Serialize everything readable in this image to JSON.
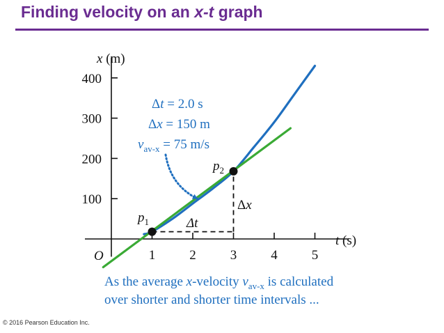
{
  "slide": {
    "title_pre": "Finding velocity on an ",
    "title_var": "x-t",
    "title_post": " graph",
    "copyright": "© 2016 Pearson Education Inc."
  },
  "chart_data": {
    "type": "line",
    "x_axis": {
      "label_var": "t",
      "label_unit": " (s)",
      "ticks": [
        1,
        2,
        3,
        4,
        5
      ],
      "range": [
        0,
        5.5
      ]
    },
    "y_axis": {
      "label_var": "x",
      "label_unit": " (m)",
      "ticks": [
        100,
        200,
        300,
        400
      ],
      "range": [
        -70,
        430
      ]
    },
    "origin_label": "O",
    "series": [
      {
        "role": "curve",
        "color": "#1f6fbf",
        "x": [
          0.8,
          1.0,
          1.5,
          2.0,
          2.5,
          3.0,
          3.5,
          4.0,
          4.5,
          5.0
        ],
        "y": [
          12,
          18,
          50,
          88,
          126,
          168,
          228,
          290,
          360,
          430
        ]
      },
      {
        "role": "secant",
        "color": "#3aaa35",
        "x": [
          -0.2,
          4.4
        ],
        "y": [
          -70,
          275
        ]
      }
    ],
    "points": [
      {
        "label": "p",
        "sub": "1",
        "t": 1,
        "x": 18
      },
      {
        "label": "p",
        "sub": "2",
        "t": 3,
        "x": 168
      }
    ],
    "interval_labels": {
      "dt": "Δt",
      "dx_sym": "Δ",
      "dx_var": "x"
    },
    "annotation": {
      "color": "#1f6fbf",
      "line1": {
        "sym": "Δ",
        "var": "t",
        "rest": " = 2.0 s"
      },
      "line2": {
        "sym": "Δ",
        "var": "x",
        "rest": " = 150 m"
      },
      "line3": {
        "var": "v",
        "sub": "av-x",
        "rest": " = 75 m/s"
      }
    },
    "caption": {
      "color": "#1f6fbf",
      "line1_pre": "As the average ",
      "line1_var": "x",
      "line1_mid": "-velocity ",
      "line1_v": "v",
      "line1_sub": "av-x",
      "line1_post": " is calculated",
      "line2": "over shorter and shorter time intervals ..."
    }
  }
}
